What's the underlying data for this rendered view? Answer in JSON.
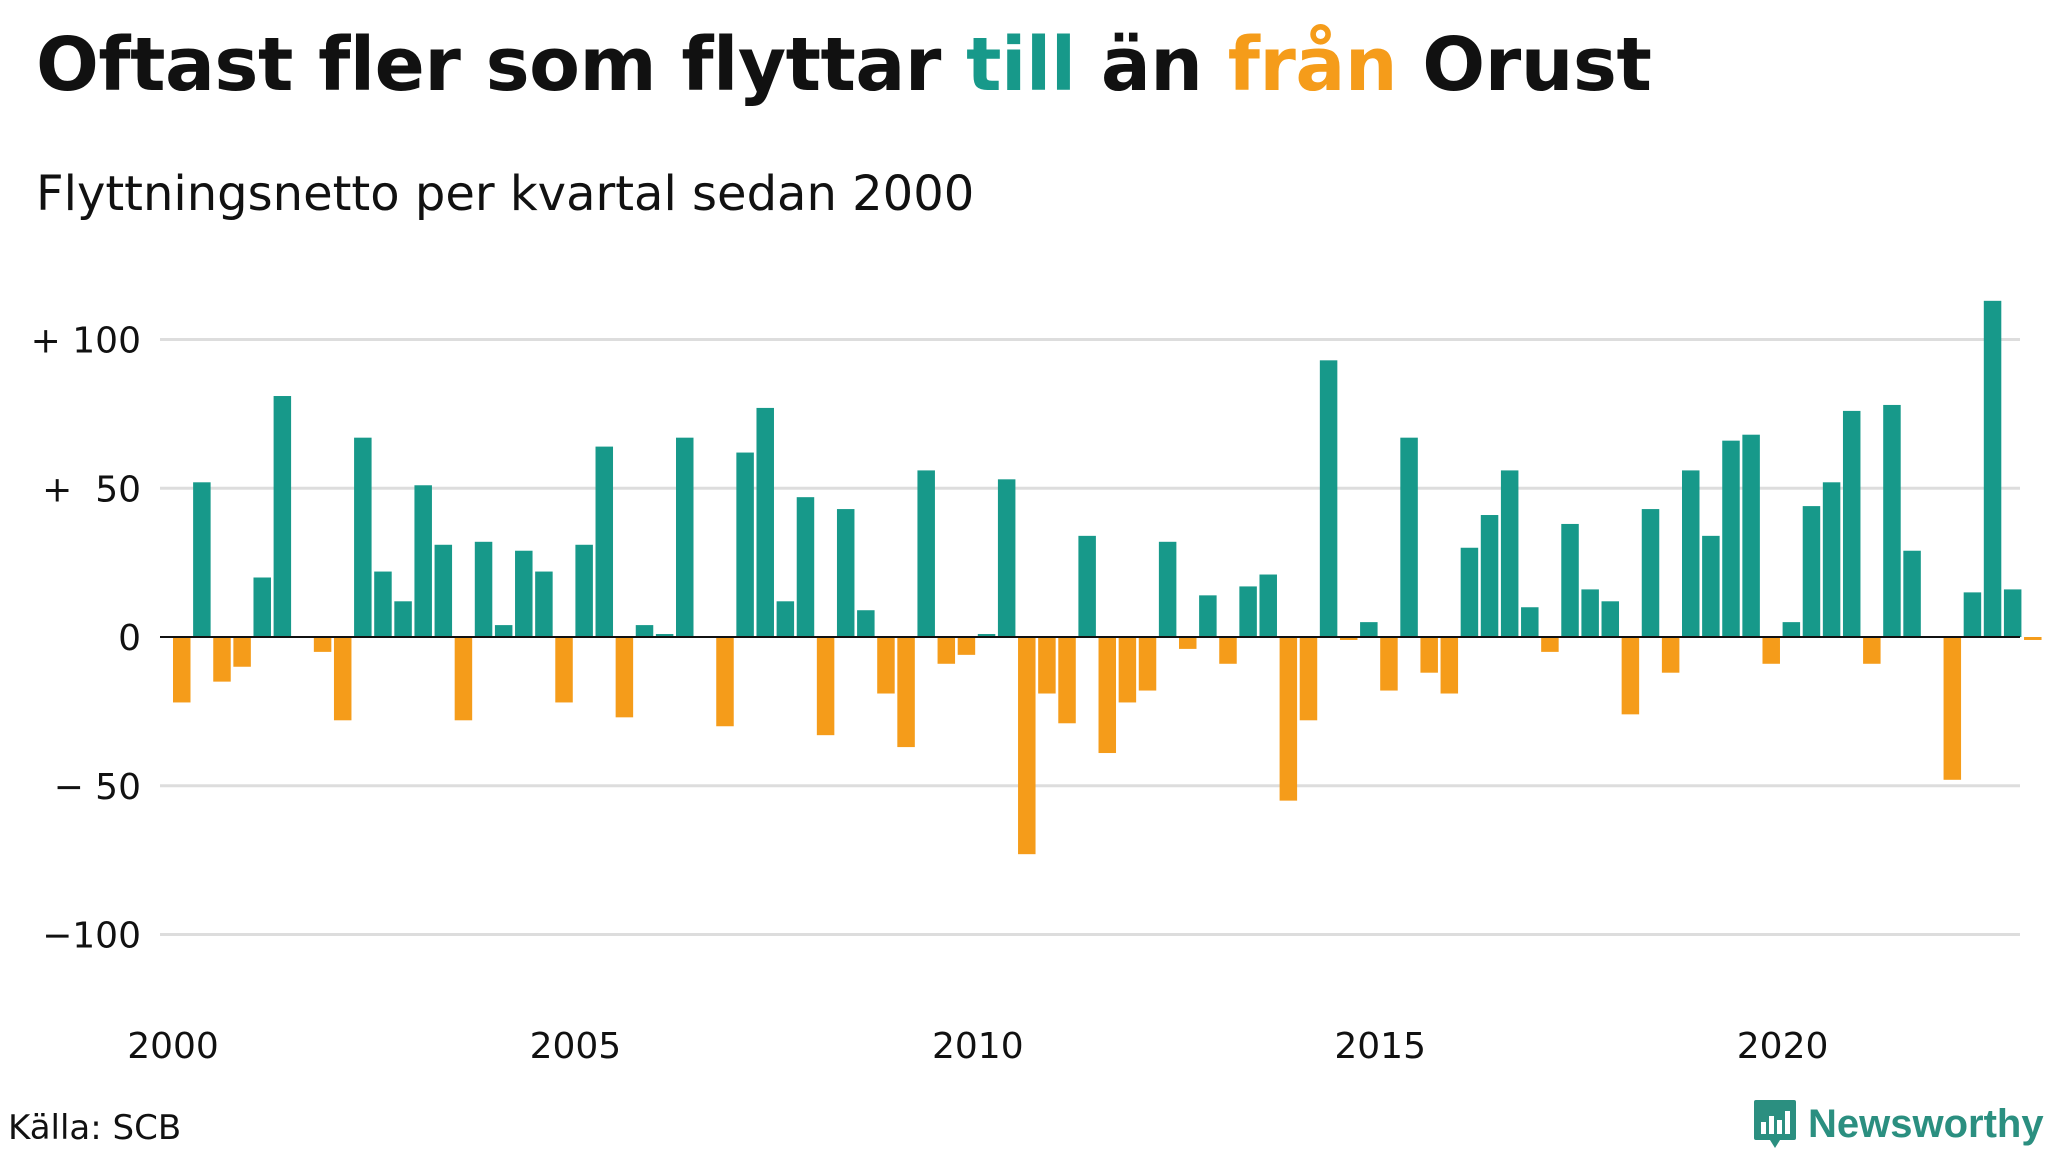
{
  "title": {
    "part1": "Oftast fler som flyttar ",
    "highlight1": "till",
    "part2": " än ",
    "highlight2": "från",
    "part3": " Orust"
  },
  "subtitle": "Flyttningsnetto per kvartal sedan 2000",
  "source": "Källa: SCB",
  "brand": "Newsworthy",
  "colors": {
    "positive": "#17998a",
    "negative": "#f59c1a",
    "grid": "#dddddd",
    "brand": "#2b8f80"
  },
  "icons": {
    "brand": "newsworthy-logo-icon"
  },
  "chart_data": {
    "type": "bar",
    "x_start": "2000 Q1",
    "x_ticks": [
      "2000",
      "2005",
      "2010",
      "2015",
      "2020"
    ],
    "y_ticks": [
      "+ 100",
      "+  50",
      "0",
      "− 50",
      "−100"
    ],
    "y_tick_values": [
      100,
      50,
      0,
      -50,
      -100
    ],
    "ylim": [
      -123,
      118
    ],
    "grid": true,
    "values": [
      -22,
      52,
      -15,
      -10,
      20,
      81,
      0,
      -5,
      -28,
      67,
      22,
      12,
      51,
      31,
      -28,
      32,
      4,
      29,
      22,
      -22,
      31,
      64,
      -27,
      4,
      1,
      67,
      0,
      -30,
      62,
      77,
      12,
      47,
      -33,
      43,
      9,
      -19,
      -37,
      56,
      -9,
      -6,
      1,
      53,
      -73,
      -19,
      -29,
      34,
      -39,
      -22,
      -18,
      32,
      -4,
      14,
      -9,
      17,
      21,
      -55,
      -28,
      93,
      -1,
      5,
      -18,
      67,
      -12,
      -19,
      30,
      41,
      56,
      10,
      -5,
      38,
      16,
      12,
      -26,
      43,
      -12,
      56,
      34,
      66,
      68,
      -9,
      5,
      44,
      52,
      76,
      -9,
      78,
      29,
      0,
      -48,
      15,
      113,
      16,
      -1
    ]
  }
}
